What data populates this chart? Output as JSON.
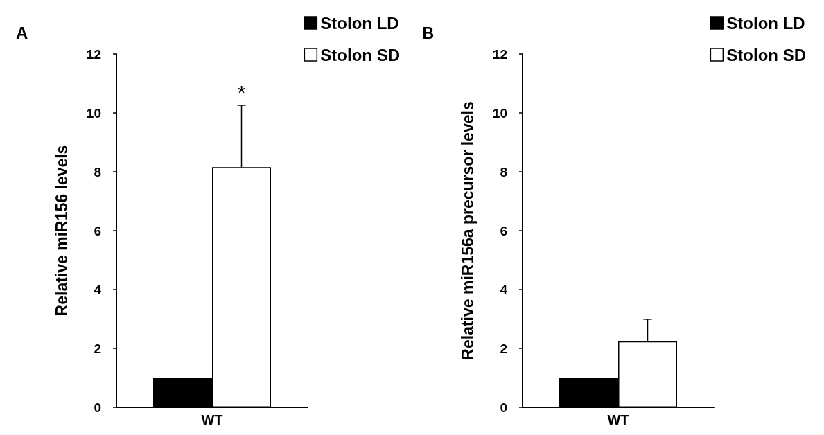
{
  "chart_data": [
    {
      "type": "bar",
      "title": "A",
      "ylabel": "Relative miR156 levels",
      "categories": [
        "WT"
      ],
      "legend": "top right",
      "ylim": [
        0,
        12
      ],
      "yticks": [
        0,
        2,
        4,
        6,
        8,
        10,
        12
      ],
      "annotations": [
        "*"
      ],
      "series": [
        {
          "name": "Stolon LD",
          "color": "#000000",
          "values": [
            1.0
          ],
          "errors": [
            null
          ]
        },
        {
          "name": "Stolon SD",
          "color": "#ffffff",
          "values": [
            8.16
          ],
          "errors": [
            [
              8.16,
              10.26
            ]
          ]
        }
      ]
    },
    {
      "type": "bar",
      "title": "B",
      "ylabel": "Relative miR156a precursor levels",
      "categories": [
        "WT"
      ],
      "legend": "top right",
      "ylim": [
        0,
        12
      ],
      "yticks": [
        0,
        2,
        4,
        6,
        8,
        10,
        12
      ],
      "series": [
        {
          "name": "Stolon LD",
          "color": "#000000",
          "values": [
            1.0
          ],
          "errors": [
            null
          ]
        },
        {
          "name": "Stolon SD",
          "color": "#ffffff",
          "values": [
            2.24
          ],
          "errors": [
            [
              2.24,
              2.99
            ]
          ]
        }
      ]
    }
  ]
}
